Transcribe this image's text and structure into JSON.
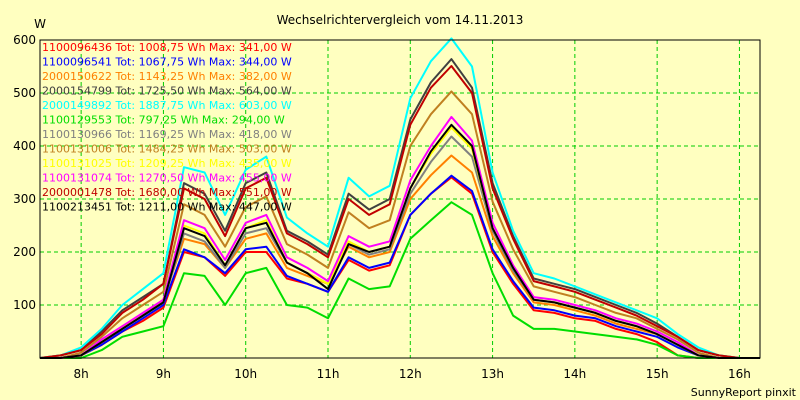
{
  "chart_data": {
    "type": "line",
    "title": "Wechselrichtervergleich vom 14.11.2013",
    "ylabel": "W",
    "footer": "SunnyReport pinxit",
    "xlim": [
      7.5,
      16.25
    ],
    "ylim": [
      0,
      600
    ],
    "x_ticks": [
      8,
      9,
      10,
      11,
      12,
      13,
      14,
      15,
      16
    ],
    "x_tick_labels": [
      "8h",
      "9h",
      "10h",
      "11h",
      "12h",
      "13h",
      "14h",
      "15h",
      "16h"
    ],
    "y_ticks": [
      100,
      200,
      300,
      400,
      500,
      600
    ],
    "y_tick_labels": [
      "100",
      "200",
      "300",
      "400",
      "500",
      "600"
    ],
    "grid": true,
    "legend_position": "top-left",
    "x": [
      7.5,
      7.75,
      8.0,
      8.25,
      8.5,
      8.75,
      9.0,
      9.25,
      9.5,
      9.75,
      10.0,
      10.25,
      10.5,
      10.75,
      11.0,
      11.25,
      11.5,
      11.75,
      12.0,
      12.25,
      12.5,
      12.75,
      13.0,
      13.25,
      13.5,
      13.75,
      14.0,
      14.25,
      14.5,
      14.75,
      15.0,
      15.25,
      15.5,
      15.75,
      16.0,
      16.25
    ],
    "series": [
      {
        "name": "1100096436 Tot: 1008,75 Wh Max: 341,00 W",
        "color": "#ff0000",
        "values": [
          0,
          0,
          5,
          25,
          50,
          70,
          95,
          200,
          190,
          155,
          200,
          200,
          150,
          140,
          125,
          185,
          165,
          175,
          270,
          310,
          341,
          310,
          200,
          140,
          90,
          85,
          75,
          70,
          55,
          45,
          30,
          5,
          0,
          0,
          0,
          0
        ]
      },
      {
        "name": "1100096541 Tot: 1067,75 Wh Max: 344,00 W",
        "color": "#0000ff",
        "values": [
          0,
          0,
          5,
          25,
          50,
          75,
          100,
          205,
          190,
          160,
          205,
          210,
          155,
          140,
          125,
          190,
          170,
          180,
          270,
          310,
          344,
          315,
          205,
          145,
          95,
          90,
          80,
          75,
          60,
          50,
          40,
          20,
          5,
          0,
          0,
          0
        ]
      },
      {
        "name": "2000150622 Tot: 1143,25 Wh Max: 382,00 W",
        "color": "#ff8000",
        "values": [
          0,
          0,
          5,
          30,
          55,
          80,
          110,
          225,
          215,
          170,
          225,
          235,
          170,
          155,
          140,
          210,
          190,
          200,
          300,
          345,
          382,
          350,
          230,
          160,
          105,
          100,
          90,
          80,
          65,
          55,
          45,
          25,
          5,
          0,
          0,
          0
        ]
      },
      {
        "name": "2000154799 Tot: 1725,50 Wh Max: 564,00 W",
        "color": "#404040",
        "values": [
          0,
          5,
          15,
          50,
          90,
          115,
          140,
          330,
          310,
          240,
          330,
          350,
          240,
          220,
          195,
          310,
          280,
          300,
          450,
          520,
          564,
          510,
          330,
          230,
          150,
          140,
          130,
          115,
          100,
          85,
          65,
          40,
          15,
          5,
          0,
          0
        ]
      },
      {
        "name": "2000149892 Tot: 1887,75 Wh Max: 603,00 W",
        "color": "#00ffff",
        "values": [
          0,
          5,
          20,
          55,
          100,
          130,
          160,
          360,
          350,
          270,
          355,
          380,
          265,
          235,
          210,
          340,
          305,
          325,
          490,
          560,
          603,
          550,
          350,
          240,
          160,
          150,
          135,
          120,
          105,
          90,
          75,
          45,
          20,
          5,
          0,
          0
        ]
      },
      {
        "name": "1100129553 Tot: 797,25 Wh Max: 294,00 W",
        "color": "#00dd00",
        "values": [
          0,
          0,
          0,
          15,
          40,
          50,
          60,
          160,
          155,
          100,
          160,
          170,
          100,
          95,
          75,
          150,
          130,
          135,
          225,
          260,
          294,
          270,
          160,
          80,
          55,
          55,
          50,
          45,
          40,
          35,
          25,
          5,
          0,
          0,
          0,
          0
        ]
      },
      {
        "name": "1100130966 Tot: 1169,25 Wh Max: 418,00 W",
        "color": "#808080",
        "values": [
          0,
          0,
          5,
          30,
          55,
          80,
          105,
          235,
          220,
          170,
          235,
          245,
          180,
          160,
          140,
          215,
          195,
          205,
          310,
          370,
          418,
          380,
          240,
          165,
          110,
          105,
          95,
          85,
          70,
          60,
          45,
          25,
          5,
          0,
          0,
          0
        ]
      },
      {
        "name": "1100131006 Tot: 1484,25 Wh Max: 503,00 W",
        "color": "#c08020",
        "values": [
          0,
          0,
          10,
          40,
          75,
          100,
          125,
          290,
          270,
          210,
          285,
          305,
          215,
          195,
          170,
          275,
          245,
          260,
          400,
          460,
          503,
          460,
          295,
          205,
          135,
          125,
          115,
          100,
          85,
          75,
          55,
          35,
          10,
          0,
          0,
          0
        ]
      },
      {
        "name": "1100131025 Tot: 1209,25 Wh Max: 435,00 W",
        "color": "#ffff00",
        "values": [
          0,
          0,
          5,
          30,
          60,
          80,
          105,
          250,
          235,
          175,
          245,
          260,
          180,
          160,
          140,
          220,
          200,
          210,
          320,
          385,
          435,
          395,
          245,
          170,
          110,
          105,
          95,
          85,
          70,
          60,
          45,
          25,
          5,
          0,
          0,
          0
        ]
      },
      {
        "name": "1100131074 Tot: 1270,50 Wh Max: 455,00 W",
        "color": "#ff00ff",
        "values": [
          0,
          0,
          5,
          35,
          60,
          85,
          110,
          260,
          245,
          185,
          255,
          270,
          190,
          170,
          145,
          230,
          210,
          220,
          335,
          400,
          455,
          410,
          255,
          175,
          115,
          110,
          100,
          90,
          75,
          65,
          50,
          30,
          5,
          0,
          0,
          0
        ]
      },
      {
        "name": "2000001478 Tot: 1680,00 Wh Max: 551,00 W",
        "color": "#c00000",
        "values": [
          0,
          5,
          15,
          45,
          85,
          110,
          140,
          320,
          300,
          230,
          320,
          340,
          235,
          215,
          190,
          300,
          270,
          290,
          440,
          510,
          551,
          500,
          320,
          225,
          145,
          135,
          125,
          110,
          95,
          80,
          60,
          40,
          15,
          5,
          0,
          0
        ]
      },
      {
        "name": "1100213451 Tot: 1211,00 Wh Max: 447,00 W",
        "color": "#000000",
        "values": [
          0,
          0,
          5,
          30,
          55,
          80,
          105,
          245,
          230,
          175,
          245,
          255,
          180,
          160,
          130,
          215,
          200,
          210,
          320,
          390,
          440,
          400,
          245,
          170,
          110,
          105,
          95,
          85,
          70,
          60,
          45,
          25,
          5,
          0,
          0,
          0
        ]
      }
    ]
  }
}
